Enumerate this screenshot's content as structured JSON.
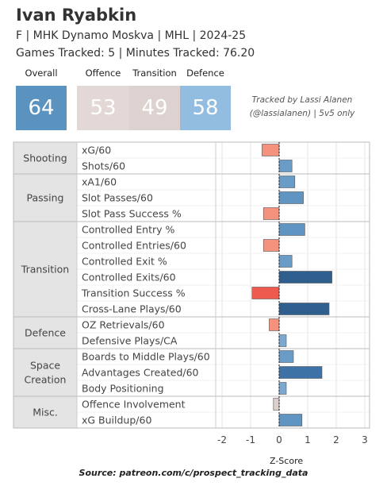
{
  "header": {
    "player_name": "Ivan Ryabkin",
    "subtitle": "F | MHK Dynamo Moskva | MHL | 2024-25",
    "tracking_line": "Games Tracked: 5 | Minutes Tracked: 76.20"
  },
  "scores": [
    {
      "label": "Overall",
      "value": "64",
      "color": "#5b93c0"
    },
    {
      "label": "Offence",
      "value": "53",
      "color": "#e3d8d6"
    },
    {
      "label": "Transition",
      "value": "49",
      "color": "#ddd2cf"
    },
    {
      "label": "Defence",
      "value": "58",
      "color": "#93bde0"
    }
  ],
  "credit": {
    "line1": "Tracked by Lassi Alanen",
    "line2": "(@lassialanen) | 5v5 only"
  },
  "source": "Source: patreon.com/c/prospect_tracking_data",
  "chart_data": {
    "type": "bar",
    "orientation": "horizontal",
    "xlabel": "Z-Score",
    "xlim": [
      -2,
      3
    ],
    "xticks": [
      -2,
      -1,
      0,
      1,
      2,
      3
    ],
    "groups": [
      {
        "name": "Shooting",
        "items": [
          {
            "label": "xG/60",
            "value": -0.6,
            "color": "#f4927e"
          },
          {
            "label": "Shots/60",
            "value": 0.45,
            "color": "#6a9cc8"
          }
        ]
      },
      {
        "name": "Passing",
        "items": [
          {
            "label": "xA1/60",
            "value": 0.55,
            "color": "#6a9cc8"
          },
          {
            "label": "Slot Passes/60",
            "value": 0.85,
            "color": "#5f94c3"
          },
          {
            "label": "Slot Pass Success %",
            "value": -0.55,
            "color": "#f4927e"
          }
        ]
      },
      {
        "name": "Transition",
        "items": [
          {
            "label": "Controlled Entry %",
            "value": 0.9,
            "color": "#5f94c3"
          },
          {
            "label": "Controlled Entries/60",
            "value": -0.55,
            "color": "#f4927e"
          },
          {
            "label": "Controlled Exit %",
            "value": 0.45,
            "color": "#6a9cc8"
          },
          {
            "label": "Controlled Exits/60",
            "value": 1.85,
            "color": "#2e5f8f"
          },
          {
            "label": "Transition Success %",
            "value": -0.95,
            "color": "#ee5a4e"
          },
          {
            "label": "Cross-Lane Plays/60",
            "value": 1.75,
            "color": "#2e5f8f"
          }
        ]
      },
      {
        "name": "Defence",
        "items": [
          {
            "label": "OZ Retrievals/60",
            "value": -0.35,
            "color": "#f4927e"
          },
          {
            "label": "Defensive Plays/CA",
            "value": 0.25,
            "color": "#7aa8cf"
          }
        ]
      },
      {
        "name": "Space Creation",
        "lines": [
          "Space",
          "Creation"
        ],
        "items": [
          {
            "label": "Boards to Middle Plays/60",
            "value": 0.5,
            "color": "#6a9cc8"
          },
          {
            "label": "Advantages Created/60",
            "value": 1.5,
            "color": "#3d72a6"
          },
          {
            "label": "Body Positioning",
            "value": 0.25,
            "color": "#7aa8cf"
          }
        ]
      },
      {
        "name": "Misc.",
        "items": [
          {
            "label": "Offence Involvement",
            "value": -0.2,
            "color": "#dcd0cc"
          },
          {
            "label": "xG Buildup/60",
            "value": 0.8,
            "color": "#5f94c3"
          }
        ]
      }
    ]
  }
}
